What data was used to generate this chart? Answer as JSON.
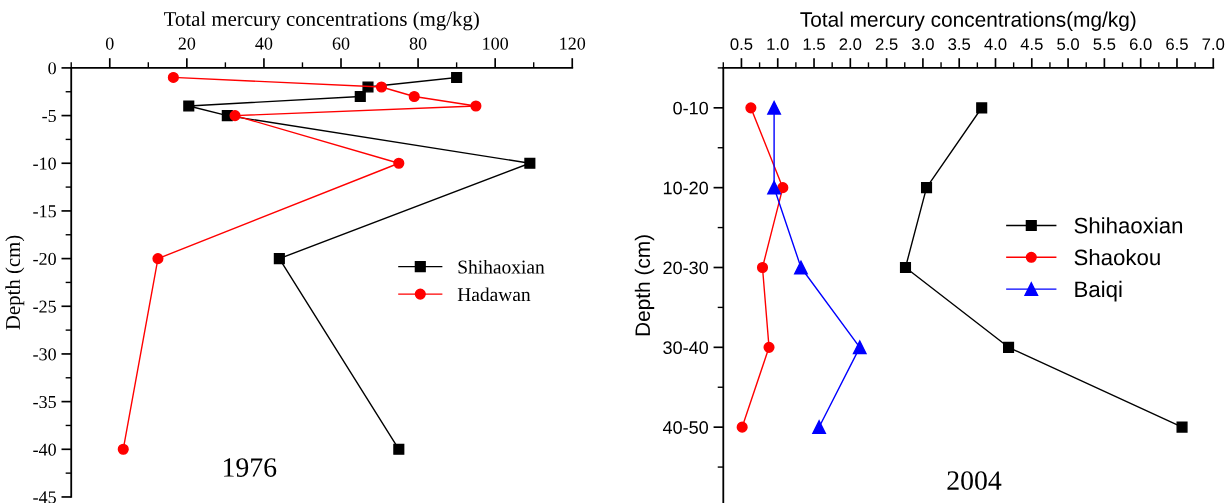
{
  "chart_data": [
    {
      "type": "line",
      "xlabel": "Total mercury concentrations (mg/kg)",
      "ylabel": "Depth (cm)",
      "xlim": [
        -10,
        120
      ],
      "xticks": [
        0,
        20,
        40,
        60,
        80,
        100,
        120
      ],
      "ylim": [
        -45,
        0
      ],
      "yticks": [
        0,
        -5,
        -10,
        -15,
        -20,
        -25,
        -30,
        -35,
        -40,
        -45
      ],
      "legend": "right",
      "grid": false,
      "annotations": [
        "1976"
      ],
      "series": [
        {
          "name": "Shihaoxian",
          "color": "#000000",
          "marker": "square",
          "x": [
            90,
            67,
            65,
            20.5,
            30.5,
            109,
            44,
            75
          ],
          "values": [
            -1,
            -2,
            -3,
            -4,
            -5,
            -10,
            -20,
            -40
          ]
        },
        {
          "name": "Hadawan",
          "color": "#ff0000",
          "marker": "circle",
          "x": [
            16.5,
            70.5,
            79,
            95,
            32.5,
            75,
            12.5,
            3.5
          ],
          "values": [
            -1,
            -2,
            -3,
            -4,
            -5,
            -10,
            -20,
            -40
          ]
        }
      ]
    },
    {
      "type": "line",
      "orientation": "horizontal",
      "xlabel": "Total mercury concentrations(mg/kg)",
      "ylabel": "Depth (cm)",
      "categories": [
        "0-10",
        "10-20",
        "20-30",
        "30-40",
        "40-50"
      ],
      "xlim": [
        0.25,
        7.0
      ],
      "xticks": [
        {
          "value": 0.5,
          "label": "0.5"
        },
        {
          "value": 1.0,
          "label": "1.0"
        },
        {
          "value": 1.5,
          "label": "1.5"
        },
        {
          "value": 2.0,
          "label": "2.0"
        },
        {
          "value": 2.5,
          "label": "2.5"
        },
        {
          "value": 3.0,
          "label": "3.0"
        },
        {
          "value": 3.5,
          "label": "3.5"
        },
        {
          "value": 4.0,
          "label": "4.0"
        },
        {
          "value": 4.5,
          "label": "4.5"
        },
        {
          "value": 5.0,
          "label": "5.0"
        },
        {
          "value": 5.5,
          "label": "5.5"
        },
        {
          "value": 6.0,
          "label": "6.0"
        },
        {
          "value": 6.5,
          "label": "6.5"
        },
        {
          "value": 7.0,
          "label": "7.0"
        }
      ],
      "legend": "right",
      "grid": false,
      "annotations": [
        "2004"
      ],
      "series": [
        {
          "name": "Shihaoxian",
          "color": "#000000",
          "marker": "square",
          "values": [
            3.81,
            3.05,
            2.76,
            4.18,
            6.57
          ]
        },
        {
          "name": "Shaokou",
          "color": "#ff0000",
          "marker": "circle",
          "values": [
            0.63,
            1.07,
            0.79,
            0.88,
            0.51
          ]
        },
        {
          "name": "Baiqi",
          "color": "#0000ff",
          "marker": "triangle",
          "values": [
            0.95,
            0.95,
            1.32,
            2.13,
            1.57
          ]
        }
      ]
    }
  ]
}
